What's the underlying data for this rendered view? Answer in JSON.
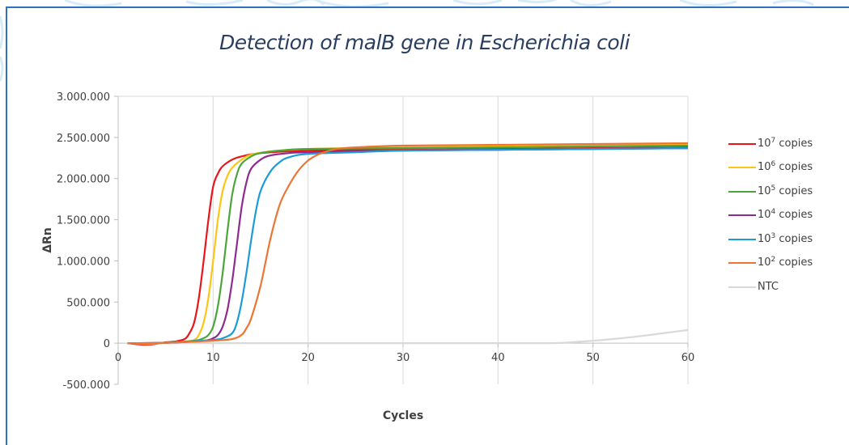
{
  "chart_data": {
    "type": "line",
    "title": "Detection of malB gene in Escherichia coli",
    "xlabel": "Cycles",
    "ylabel": "ΔRn",
    "xlim": [
      0,
      60
    ],
    "ylim": [
      -500000,
      3000000
    ],
    "xticks": [
      0,
      10,
      20,
      30,
      40,
      50,
      60
    ],
    "xtick_labels": [
      "0",
      "10",
      "20",
      "30",
      "40",
      "50",
      "60"
    ],
    "yticks": [
      3000000,
      2500000,
      2000000,
      1500000,
      1000000,
      500000,
      0,
      -500000
    ],
    "ytick_labels": [
      "3.000.000",
      "2.500.000",
      "2.000.000",
      "1.500.000",
      "1.000.000",
      "500.000",
      "0",
      "-500.000"
    ],
    "grid": "vertical",
    "legend_position": "right",
    "series": [
      {
        "name": "10^7 copies",
        "label_base": "10",
        "label_exp": "7",
        "label_rest": " copies",
        "color": "#e8161a",
        "x": [
          1,
          3,
          5,
          6,
          7,
          7.5,
          8,
          8.5,
          9,
          9.5,
          10,
          10.5,
          11,
          12,
          13,
          15,
          20,
          30,
          40,
          50,
          60
        ],
        "y": [
          0,
          -20000,
          10000,
          20000,
          50000,
          120000,
          250000,
          550000,
          1000000,
          1500000,
          1900000,
          2060000,
          2150000,
          2230000,
          2270000,
          2310000,
          2340000,
          2350000,
          2360000,
          2370000,
          2380000
        ]
      },
      {
        "name": "10^6 copies",
        "label_base": "10",
        "label_exp": "6",
        "label_rest": " copies",
        "color": "#fdc516",
        "x": [
          1,
          3,
          5,
          7,
          8,
          8.5,
          9,
          9.5,
          10,
          10.5,
          11,
          11.5,
          12,
          13,
          14,
          16,
          20,
          30,
          40,
          50,
          60
        ],
        "y": [
          0,
          -10000,
          5000,
          20000,
          40000,
          100000,
          250000,
          550000,
          1000000,
          1500000,
          1850000,
          2030000,
          2130000,
          2230000,
          2290000,
          2330000,
          2360000,
          2380000,
          2390000,
          2400000,
          2410000
        ]
      },
      {
        "name": "10^5 copies",
        "label_base": "10",
        "label_exp": "5",
        "label_rest": " copies",
        "color": "#4ca53b",
        "x": [
          1,
          5,
          8,
          9,
          9.5,
          10,
          10.5,
          11,
          11.5,
          12,
          12.5,
          13,
          14,
          15,
          17,
          20,
          30,
          40,
          50,
          60
        ],
        "y": [
          0,
          5000,
          30000,
          60000,
          100000,
          200000,
          450000,
          850000,
          1350000,
          1800000,
          2050000,
          2180000,
          2270000,
          2310000,
          2340000,
          2360000,
          2370000,
          2380000,
          2390000,
          2400000
        ]
      },
      {
        "name": "10^4 copies",
        "label_base": "10",
        "label_exp": "4",
        "label_rest": " copies",
        "color": "#8e2b8e",
        "x": [
          1,
          5,
          9,
          10,
          10.5,
          11,
          11.5,
          12,
          12.5,
          13,
          13.5,
          14,
          15,
          16,
          18,
          20,
          30,
          40,
          50,
          60
        ],
        "y": [
          0,
          5000,
          30000,
          60000,
          100000,
          200000,
          400000,
          750000,
          1200000,
          1650000,
          1950000,
          2120000,
          2230000,
          2280000,
          2310000,
          2320000,
          2340000,
          2350000,
          2360000,
          2370000
        ]
      },
      {
        "name": "10^3 copies",
        "label_base": "10",
        "label_exp": "3",
        "label_rest": " copies",
        "color": "#1b9bd8",
        "x": [
          1,
          5,
          10,
          11,
          12,
          12.5,
          13,
          13.5,
          14,
          14.5,
          15,
          16,
          17,
          18,
          20,
          25,
          30,
          40,
          50,
          60
        ],
        "y": [
          0,
          5000,
          40000,
          60000,
          120000,
          250000,
          500000,
          850000,
          1250000,
          1600000,
          1850000,
          2080000,
          2200000,
          2260000,
          2300000,
          2320000,
          2340000,
          2350000,
          2360000,
          2370000
        ]
      },
      {
        "name": "10^2 copies",
        "label_base": "10",
        "label_exp": "2",
        "label_rest": " copies",
        "color": "#ec7534",
        "x": [
          1,
          5,
          10,
          12,
          13,
          13.5,
          14,
          15,
          16,
          17,
          18,
          19,
          20,
          21,
          22,
          23,
          25,
          30,
          40,
          50,
          60
        ],
        "y": [
          0,
          5000,
          30000,
          50000,
          100000,
          180000,
          300000,
          700000,
          1250000,
          1680000,
          1920000,
          2100000,
          2220000,
          2290000,
          2330000,
          2360000,
          2380000,
          2400000,
          2410000,
          2420000,
          2430000
        ]
      },
      {
        "name": "NTC",
        "label_base": "NTC",
        "label_exp": "",
        "label_rest": "",
        "color": "#d9d9d9",
        "x": [
          1,
          10,
          20,
          30,
          40,
          45,
          47,
          50,
          53,
          56,
          58,
          60
        ],
        "y": [
          0,
          0,
          0,
          0,
          0,
          0,
          5000,
          30000,
          60000,
          100000,
          130000,
          160000
        ]
      }
    ]
  }
}
